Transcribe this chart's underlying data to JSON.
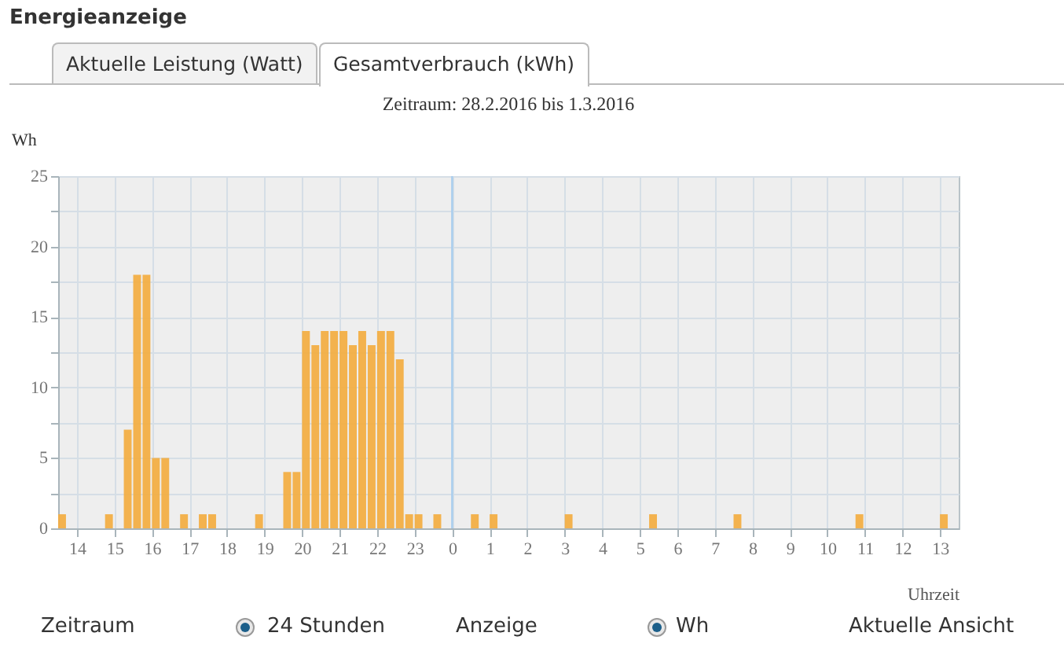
{
  "chart_data": {
    "type": "bar",
    "title": "Energieanzeige",
    "subtitle": "Zeitraum: 28.2.2016 bis 1.3.2016",
    "xlabel": "Uhrzeit",
    "ylabel": "Wh",
    "annotations": [
      "Aktuelle Leistung (Watt)",
      "Gesamtverbrauch (kWh)",
      "Zeitraum",
      "24 Stunden",
      "Anzeige",
      "Wh",
      "Aktuelle Ansicht"
    ],
    "x": [
      "2016-02-29T13:30",
      "2016-02-29T13:45",
      "2016-02-29T14:00",
      "2016-02-29T14:15",
      "2016-02-29T14:30",
      "2016-02-29T14:45",
      "2016-02-29T15:00",
      "2016-02-29T15:15",
      "2016-02-29T15:30",
      "2016-02-29T15:45",
      "2016-02-29T16:00",
      "2016-02-29T16:15",
      "2016-02-29T16:30",
      "2016-02-29T16:45",
      "2016-02-29T17:00",
      "2016-02-29T17:15",
      "2016-02-29T17:30",
      "2016-02-29T17:45",
      "2016-02-29T18:00",
      "2016-02-29T18:15",
      "2016-02-29T18:30",
      "2016-02-29T18:45",
      "2016-02-29T19:00",
      "2016-02-29T19:15",
      "2016-02-29T19:30",
      "2016-02-29T19:45",
      "2016-02-29T20:00",
      "2016-02-29T20:15",
      "2016-02-29T20:30",
      "2016-02-29T20:45",
      "2016-02-29T21:00",
      "2016-02-29T21:15",
      "2016-02-29T21:30",
      "2016-02-29T21:45",
      "2016-02-29T22:00",
      "2016-02-29T22:15",
      "2016-02-29T22:30",
      "2016-02-29T22:45",
      "2016-02-29T23:00",
      "2016-02-29T23:15",
      "2016-02-29T23:30",
      "2016-02-29T23:45",
      "2016-03-01T00:00",
      "2016-03-01T00:15",
      "2016-03-01T00:30",
      "2016-03-01T00:45",
      "2016-03-01T01:00",
      "2016-03-01T01:15",
      "2016-03-01T01:30",
      "2016-03-01T01:45",
      "2016-03-01T02:00",
      "2016-03-01T02:15",
      "2016-03-01T02:30",
      "2016-03-01T02:45",
      "2016-03-01T03:00",
      "2016-03-01T03:15",
      "2016-03-01T03:30",
      "2016-03-01T03:45",
      "2016-03-01T04:00",
      "2016-03-01T04:15",
      "2016-03-01T04:30",
      "2016-03-01T04:45",
      "2016-03-01T05:00",
      "2016-03-01T05:15",
      "2016-03-01T05:30",
      "2016-03-01T05:45",
      "2016-03-01T06:00",
      "2016-03-01T06:15",
      "2016-03-01T06:30",
      "2016-03-01T06:45",
      "2016-03-01T07:00",
      "2016-03-01T07:15",
      "2016-03-01T07:30",
      "2016-03-01T07:45",
      "2016-03-01T08:00",
      "2016-03-01T08:15",
      "2016-03-01T08:30",
      "2016-03-01T08:45",
      "2016-03-01T09:00",
      "2016-03-01T09:15",
      "2016-03-01T09:30",
      "2016-03-01T09:45",
      "2016-03-01T10:00",
      "2016-03-01T10:15",
      "2016-03-01T10:30",
      "2016-03-01T10:45",
      "2016-03-01T11:00",
      "2016-03-01T11:15",
      "2016-03-01T11:30",
      "2016-03-01T11:45",
      "2016-03-01T12:00",
      "2016-03-01T12:15",
      "2016-03-01T12:30",
      "2016-03-01T12:45",
      "2016-03-01T13:00",
      "2016-03-01T13:15"
    ],
    "series": [
      {
        "color": "#f2ae45",
        "values": [
          1,
          0,
          0,
          0,
          0,
          1,
          0,
          7,
          18,
          18,
          5,
          5,
          0,
          1,
          0,
          1,
          1,
          0,
          0,
          0,
          0,
          1,
          0,
          0,
          4,
          4,
          14,
          13,
          14,
          14,
          14,
          13,
          14,
          13,
          14,
          14,
          12,
          1,
          1,
          0,
          1,
          0,
          0,
          0,
          1,
          0,
          1,
          0,
          0,
          0,
          0,
          0,
          0,
          0,
          1,
          0,
          0,
          0,
          0,
          0,
          0,
          0,
          0,
          1,
          0,
          0,
          0,
          0,
          0,
          0,
          0,
          0,
          1,
          0,
          0,
          0,
          0,
          0,
          0,
          0,
          0,
          0,
          0,
          0,
          0,
          1,
          0,
          0,
          0,
          0,
          0,
          0,
          0,
          0,
          1,
          0
        ]
      }
    ],
    "xlim": [
      "2016-02-29T13:30",
      "2016-03-01T13:30"
    ],
    "xticks": [
      {
        "value": "2016-02-29T14:00",
        "label": "14"
      },
      {
        "value": "2016-02-29T15:00",
        "label": "15"
      },
      {
        "value": "2016-02-29T16:00",
        "label": "16"
      },
      {
        "value": "2016-02-29T17:00",
        "label": "17"
      },
      {
        "value": "2016-02-29T18:00",
        "label": "18"
      },
      {
        "value": "2016-02-29T19:00",
        "label": "19"
      },
      {
        "value": "2016-02-29T20:00",
        "label": "20"
      },
      {
        "value": "2016-02-29T21:00",
        "label": "21"
      },
      {
        "value": "2016-02-29T22:00",
        "label": "22"
      },
      {
        "value": "2016-02-29T23:00",
        "label": "23"
      },
      {
        "value": "2016-03-01T00:00",
        "label": "0"
      },
      {
        "value": "2016-03-01T01:00",
        "label": "1"
      },
      {
        "value": "2016-03-01T02:00",
        "label": "2"
      },
      {
        "value": "2016-03-01T03:00",
        "label": "3"
      },
      {
        "value": "2016-03-01T04:00",
        "label": "4"
      },
      {
        "value": "2016-03-01T05:00",
        "label": "5"
      },
      {
        "value": "2016-03-01T06:00",
        "label": "6"
      },
      {
        "value": "2016-03-01T07:00",
        "label": "7"
      },
      {
        "value": "2016-03-01T08:00",
        "label": "8"
      },
      {
        "value": "2016-03-01T09:00",
        "label": "9"
      },
      {
        "value": "2016-03-01T10:00",
        "label": "10"
      },
      {
        "value": "2016-03-01T11:00",
        "label": "11"
      },
      {
        "value": "2016-03-01T12:00",
        "label": "12"
      },
      {
        "value": "2016-03-01T13:00",
        "label": "13"
      }
    ],
    "ylim": [
      0,
      25
    ],
    "yticks": [
      0,
      {
        "value": 2.5,
        "label": null
      },
      5,
      {
        "value": 7.5,
        "label": null
      },
      10,
      {
        "value": 12.5,
        "label": null
      },
      15,
      {
        "value": 17.5,
        "label": null
      },
      20,
      {
        "value": 22.5,
        "label": null
      },
      25
    ],
    "ref_lines": [
      {
        "axis": "x",
        "value": "2016-03-01T00:00",
        "color": "#a8cdee"
      }
    ],
    "grid": true
  }
}
